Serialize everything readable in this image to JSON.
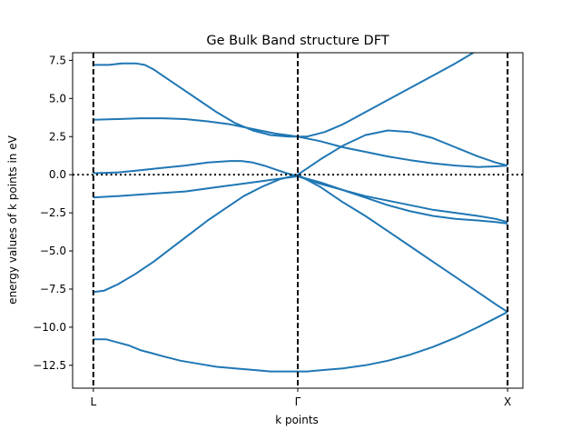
{
  "chart_data": {
    "type": "line",
    "title": "Ge Bulk Band structure DFT",
    "xlabel": "k points",
    "ylabel": "energy values of k points in eV",
    "xlim": [
      0,
      1
    ],
    "ylim": [
      -14,
      8
    ],
    "yticks": [
      7.5,
      5.0,
      2.5,
      0.0,
      -2.5,
      -5.0,
      -7.5,
      -10.0,
      -12.5
    ],
    "ytick_labels": [
      "7.5",
      "5.0",
      "2.5",
      "0.0",
      "−2.5",
      "−5.0",
      "−7.5",
      "−10.0",
      "−12.5"
    ],
    "xticks": [
      0.046,
      0.5,
      0.966
    ],
    "xtick_labels": [
      "L",
      "Γ",
      "X"
    ],
    "vlines": [
      0.046,
      0.5,
      0.966
    ],
    "hline": 0.0,
    "grid": false,
    "line_color": "#1f77b4",
    "series": [
      {
        "x": [
          0.046,
          0.075,
          0.1,
          0.125,
          0.15,
          0.175,
          0.2,
          0.24,
          0.28,
          0.32,
          0.36,
          0.4,
          0.44,
          0.48,
          0.5,
          0.52,
          0.56,
          0.6,
          0.65,
          0.7,
          0.75,
          0.8,
          0.85,
          0.9,
          0.94,
          0.966
        ],
        "y": [
          -10.8,
          -10.8,
          -11.0,
          -11.2,
          -11.5,
          -11.7,
          -11.9,
          -12.2,
          -12.4,
          -12.6,
          -12.7,
          -12.8,
          -12.9,
          -12.9,
          -12.9,
          -12.9,
          -12.8,
          -12.7,
          -12.5,
          -12.2,
          -11.8,
          -11.3,
          -10.7,
          -10.0,
          -9.4,
          -9.0
        ]
      },
      {
        "x": [
          0.046,
          0.07,
          0.1,
          0.14,
          0.18,
          0.22,
          0.26,
          0.3,
          0.34,
          0.38,
          0.42,
          0.46,
          0.5
        ],
        "y": [
          -7.7,
          -7.6,
          -7.2,
          -6.5,
          -5.7,
          -4.8,
          -3.9,
          -3.0,
          -2.2,
          -1.4,
          -0.8,
          -0.3,
          0.0
        ]
      },
      {
        "x": [
          0.5,
          0.55,
          0.6,
          0.65,
          0.7,
          0.75,
          0.8,
          0.85,
          0.9,
          0.94,
          0.966
        ],
        "y": [
          0.0,
          -0.8,
          -1.8,
          -2.7,
          -3.7,
          -4.7,
          -5.7,
          -6.7,
          -7.7,
          -8.5,
          -9.0
        ]
      },
      {
        "x": [
          0.046,
          0.1,
          0.15,
          0.2,
          0.25,
          0.3,
          0.35,
          0.4,
          0.45,
          0.5
        ],
        "y": [
          -1.5,
          -1.4,
          -1.3,
          -1.2,
          -1.1,
          -0.9,
          -0.7,
          -0.5,
          -0.3,
          -0.1
        ]
      },
      {
        "x": [
          0.5,
          0.55,
          0.6,
          0.65,
          0.7,
          0.75,
          0.8,
          0.85,
          0.9,
          0.94,
          0.966
        ],
        "y": [
          -0.1,
          -0.5,
          -1.0,
          -1.5,
          -2.0,
          -2.4,
          -2.7,
          -2.9,
          -3.0,
          -3.1,
          -3.2
        ]
      },
      {
        "x": [
          0.046,
          0.1,
          0.15,
          0.2,
          0.25,
          0.3,
          0.35,
          0.375,
          0.4,
          0.425,
          0.45,
          0.475,
          0.5
        ],
        "y": [
          0.1,
          0.15,
          0.3,
          0.45,
          0.6,
          0.8,
          0.9,
          0.9,
          0.8,
          0.6,
          0.35,
          0.1,
          -0.1
        ]
      },
      {
        "x": [
          0.5,
          0.55,
          0.6,
          0.65,
          0.7,
          0.75,
          0.8,
          0.85,
          0.9,
          0.94,
          0.966
        ],
        "y": [
          -0.1,
          -0.6,
          -1.0,
          -1.4,
          -1.7,
          -2.0,
          -2.3,
          -2.5,
          -2.7,
          -2.9,
          -3.1
        ]
      },
      {
        "x": [
          0.046,
          0.1,
          0.15,
          0.2,
          0.25,
          0.3,
          0.35,
          0.4,
          0.45,
          0.5
        ],
        "y": [
          3.6,
          3.65,
          3.7,
          3.7,
          3.65,
          3.5,
          3.3,
          3.0,
          2.7,
          2.5
        ]
      },
      {
        "x": [
          0.5,
          0.55,
          0.6,
          0.65,
          0.7,
          0.75,
          0.8,
          0.85,
          0.9,
          0.94,
          0.966
        ],
        "y": [
          2.5,
          2.2,
          1.8,
          1.5,
          1.2,
          0.95,
          0.75,
          0.6,
          0.5,
          0.55,
          0.6
        ]
      },
      {
        "x": [
          0.5,
          0.55,
          0.6,
          0.65,
          0.7,
          0.75,
          0.8,
          0.85,
          0.9,
          0.94,
          0.966
        ],
        "y": [
          0.0,
          1.0,
          1.9,
          2.6,
          2.9,
          2.8,
          2.4,
          1.8,
          1.2,
          0.8,
          0.6
        ]
      },
      {
        "x": [
          0.046,
          0.08,
          0.11,
          0.14,
          0.16,
          0.18,
          0.2,
          0.24,
          0.28,
          0.32,
          0.36,
          0.4,
          0.44,
          0.48,
          0.5
        ],
        "y": [
          7.2,
          7.2,
          7.3,
          7.3,
          7.2,
          6.9,
          6.5,
          5.7,
          4.9,
          4.1,
          3.4,
          2.9,
          2.6,
          2.5,
          2.5
        ]
      },
      {
        "x": [
          0.5,
          0.52,
          0.56,
          0.6,
          0.65,
          0.7,
          0.75,
          0.8,
          0.85,
          0.89
        ],
        "y": [
          2.5,
          2.5,
          2.8,
          3.3,
          4.1,
          4.9,
          5.7,
          6.5,
          7.3,
          8.0
        ]
      }
    ]
  }
}
